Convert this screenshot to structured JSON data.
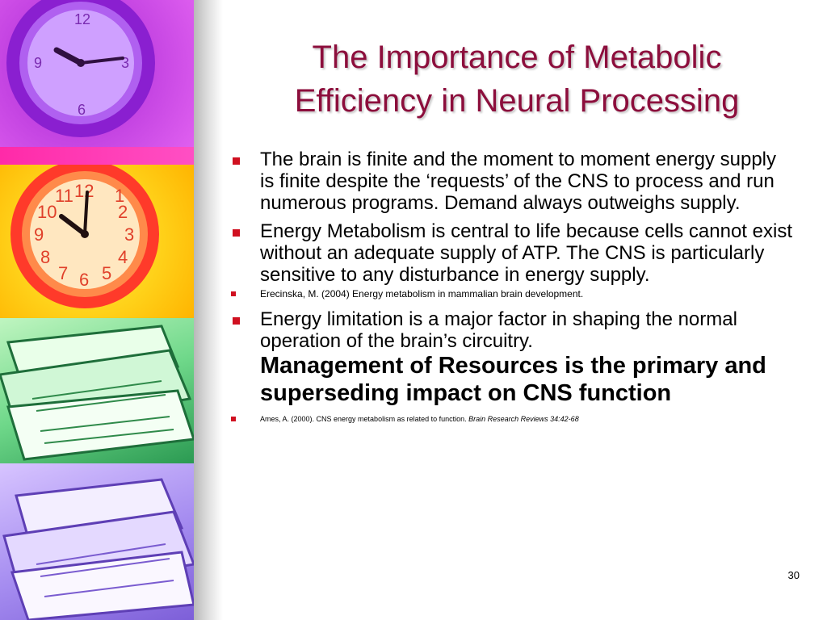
{
  "slide": {
    "title_line1": "The Importance of Metabolic",
    "title_line2": "Efficiency in Neural Processing",
    "page_number": "30"
  },
  "bullets": [
    {
      "text": "The brain is finite and the moment to moment energy supply is finite despite the ‘requests’ of the CNS to process and run numerous programs. Demand always outweighs supply."
    },
    {
      "text": "Energy Metabolism is central to life because cells cannot exist without an adequate supply of ATP. The CNS is particularly sensitive to any disturbance in energy supply."
    },
    {
      "text": "Erecinska, M. (2004) Energy metabolism in mammalian brain development."
    },
    {
      "text": "Energy limitation is a major factor in shaping the normal operation of the brain’s circuitry.",
      "bold_text": "Management of Resources is the primary and superseding impact on CNS function"
    },
    {
      "text": "Ames, A. (2000). CNS energy metabolism as related to function. ",
      "italic_text": "Brain Research Reviews 34:42-68"
    }
  ],
  "decorative_images": [
    "purple-clock",
    "orange-clock",
    "green-papers",
    "purple-papers"
  ],
  "colors": {
    "title": "#8c0e3c",
    "bullet": "#d01020"
  }
}
